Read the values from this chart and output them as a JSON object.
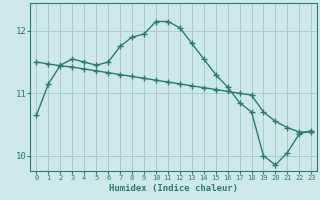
{
  "title": "",
  "xlabel": "Humidex (Indice chaleur)",
  "ylabel": "",
  "background_color": "#cce8e8",
  "grid_color": "#aacccc",
  "line_color": "#2a7d6e",
  "xlim": [
    -0.5,
    23.5
  ],
  "ylim": [
    9.75,
    12.45
  ],
  "yticks": [
    10,
    11,
    12
  ],
  "xticks": [
    0,
    1,
    2,
    3,
    4,
    5,
    6,
    7,
    8,
    9,
    10,
    11,
    12,
    13,
    14,
    15,
    16,
    17,
    18,
    19,
    20,
    21,
    22,
    23
  ],
  "curve1_x": [
    0,
    1,
    2,
    3,
    4,
    5,
    6,
    7,
    8,
    9,
    10,
    11,
    12,
    13,
    14,
    15,
    16,
    17,
    18,
    19,
    20,
    21,
    22,
    23
  ],
  "curve1_y": [
    10.65,
    11.15,
    11.45,
    11.55,
    11.5,
    11.45,
    11.5,
    11.75,
    11.9,
    11.95,
    12.15,
    12.15,
    12.05,
    11.8,
    11.55,
    11.3,
    11.1,
    10.85,
    10.7,
    10.0,
    9.85,
    10.05,
    10.35,
    10.4
  ],
  "curve2_x": [
    0,
    1,
    2,
    3,
    4,
    5,
    6,
    7,
    8,
    9,
    10,
    11,
    12,
    13,
    14,
    15,
    16,
    17,
    18,
    19,
    20,
    21,
    22,
    23
  ],
  "curve2_y": [
    11.5,
    11.47,
    11.44,
    11.42,
    11.39,
    11.36,
    11.33,
    11.3,
    11.27,
    11.24,
    11.21,
    11.18,
    11.15,
    11.12,
    11.09,
    11.06,
    11.03,
    11.0,
    10.97,
    10.7,
    10.55,
    10.45,
    10.38,
    10.38
  ]
}
